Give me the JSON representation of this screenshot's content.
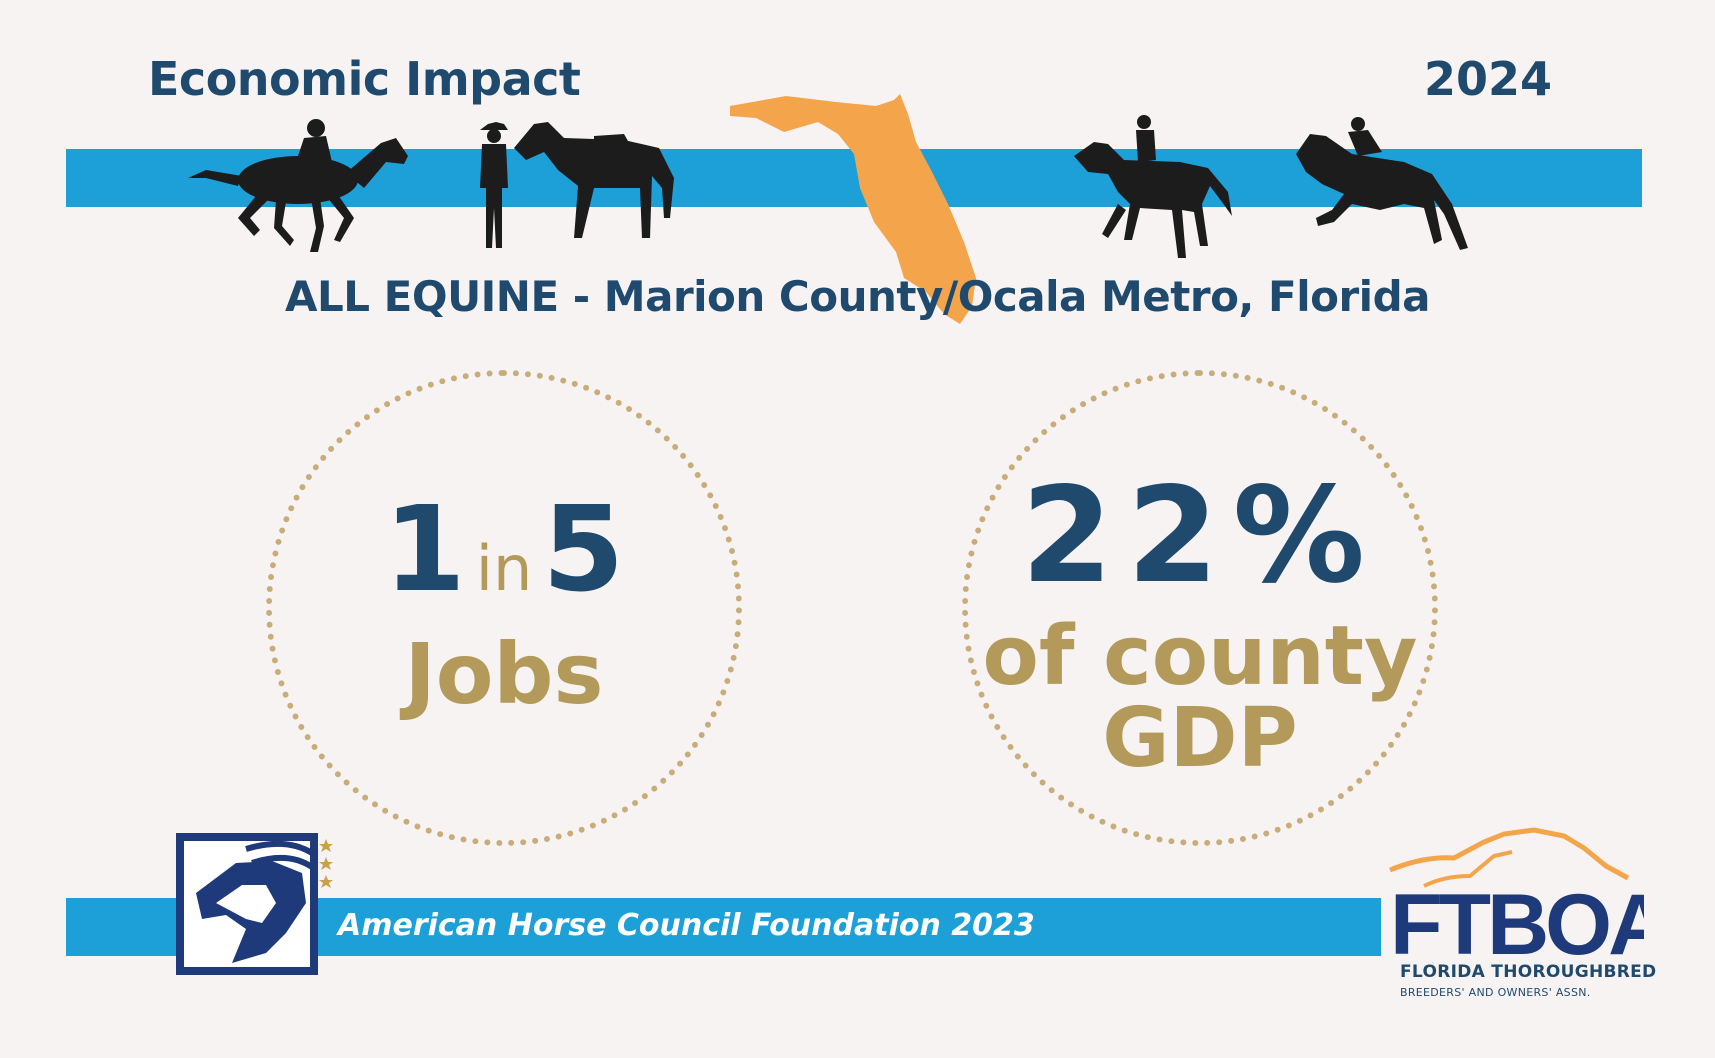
{
  "header": {
    "title": "Economic Impact",
    "year": "2024",
    "subtitle": "ALL EQUINE - Marion County/Ocala Metro, Florida"
  },
  "stats": {
    "jobs": {
      "num1": "1",
      "in": "in",
      "num2": "5",
      "label": "Jobs"
    },
    "gdp": {
      "value": "22%",
      "line1": "of county",
      "line2": "GDP"
    }
  },
  "footer": {
    "source": "American Horse Council Foundation 2023",
    "ftboa_logo_text": "FTBOA",
    "ftboa_line1": "FLORIDA THOROUGHBRED",
    "ftboa_line2": "BREEDERS' AND OWNERS' ASSN."
  },
  "colors": {
    "navy": "#1f4a6e",
    "gold": "#b39a5a",
    "band_blue": "#1d9fd8",
    "florida_orange": "#f4a54b",
    "background": "#f7f3f2"
  },
  "icons": [
    "racehorse-icon",
    "cowboy-horse-icon",
    "florida-map-icon",
    "dressage-horse-icon",
    "jumping-horse-icon",
    "ahc-horse-logo-icon",
    "ftboa-logo-icon"
  ]
}
